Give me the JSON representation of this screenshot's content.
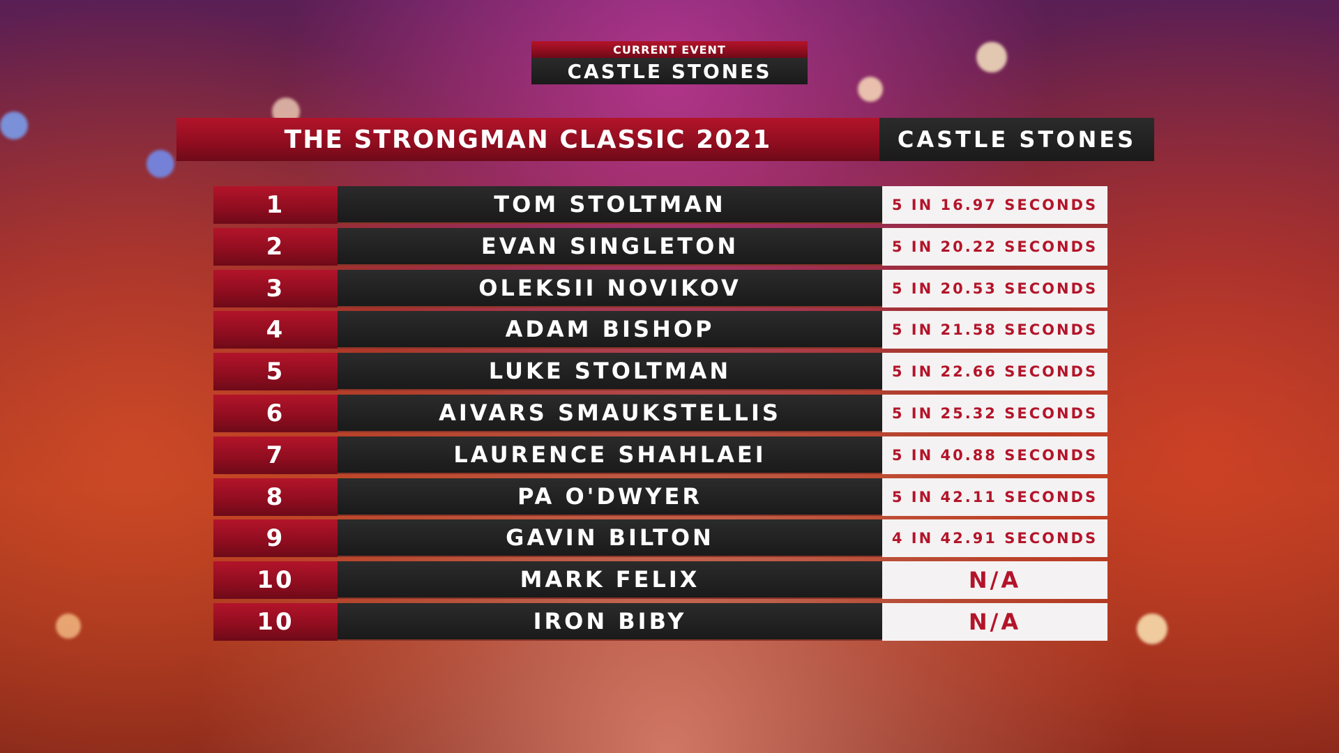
{
  "header": {
    "current_event_label": "CURRENT EVENT",
    "current_event": "CASTLE STONES"
  },
  "table": {
    "title": "THE STRONGMAN CLASSIC 2021",
    "event": "CASTLE STONES",
    "rows": [
      [
        "1",
        "TOM STOLTMAN",
        "5 IN 16.97 SECONDS"
      ],
      [
        "2",
        "EVAN SINGLETON",
        "5 IN 20.22 SECONDS"
      ],
      [
        "3",
        "OLEKSII NOVIKOV",
        "5 IN 20.53 SECONDS"
      ],
      [
        "4",
        "ADAM BISHOP",
        "5 IN 21.58 SECONDS"
      ],
      [
        "5",
        "LUKE STOLTMAN",
        "5 IN 22.66 SECONDS"
      ],
      [
        "6",
        "AIVARS SMAUKSTELLIS",
        "5 IN 25.32 SECONDS"
      ],
      [
        "7",
        "LAURENCE SHAHLAEI",
        "5 IN 40.88 SECONDS"
      ],
      [
        "8",
        "PA O'DWYER",
        "5 IN 42.11 SECONDS"
      ],
      [
        "9",
        "GAVIN BILTON",
        "4 IN 42.91 SECONDS"
      ],
      [
        "10",
        "MARK FELIX",
        "N/A"
      ],
      [
        "10",
        "IRON BIBY",
        "N/A"
      ]
    ]
  }
}
